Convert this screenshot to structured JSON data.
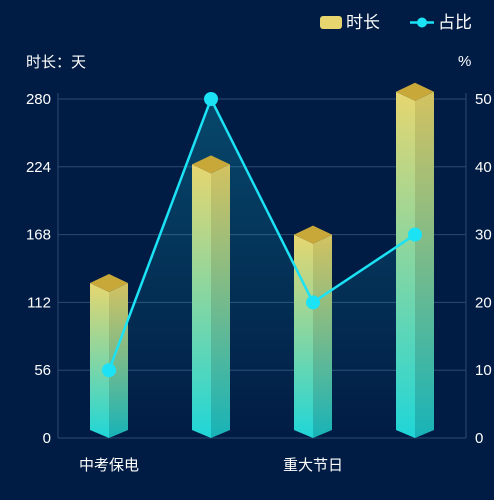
{
  "chart_data": {
    "type": "bar",
    "categories": [
      "中考保电",
      "",
      "重大节日",
      ""
    ],
    "series": [
      {
        "name": "时长",
        "type": "bar",
        "axis": "left",
        "values": [
          128,
          226,
          168,
          286
        ],
        "color_top": "#e7d66f",
        "color_bottom": "#1fd6d8",
        "cap_color": "#c9a83a"
      },
      {
        "name": "占比",
        "type": "line",
        "axis": "right",
        "values": [
          10,
          50,
          20,
          30
        ],
        "color": "#1be2f5"
      }
    ],
    "y_left": {
      "label": "时长：天",
      "ticks": [
        "0",
        "56",
        "112",
        "168",
        "224",
        "280"
      ],
      "lim": [
        0,
        280
      ]
    },
    "y_right": {
      "label": "%",
      "ticks": [
        "0",
        "10",
        "20",
        "30",
        "40",
        "50"
      ],
      "lim": [
        0,
        50
      ]
    },
    "legend_position": "top-right",
    "grid": true
  },
  "colors": {
    "background": "#011c44",
    "grid": "#2b4a6e",
    "text": "#ffffff"
  }
}
